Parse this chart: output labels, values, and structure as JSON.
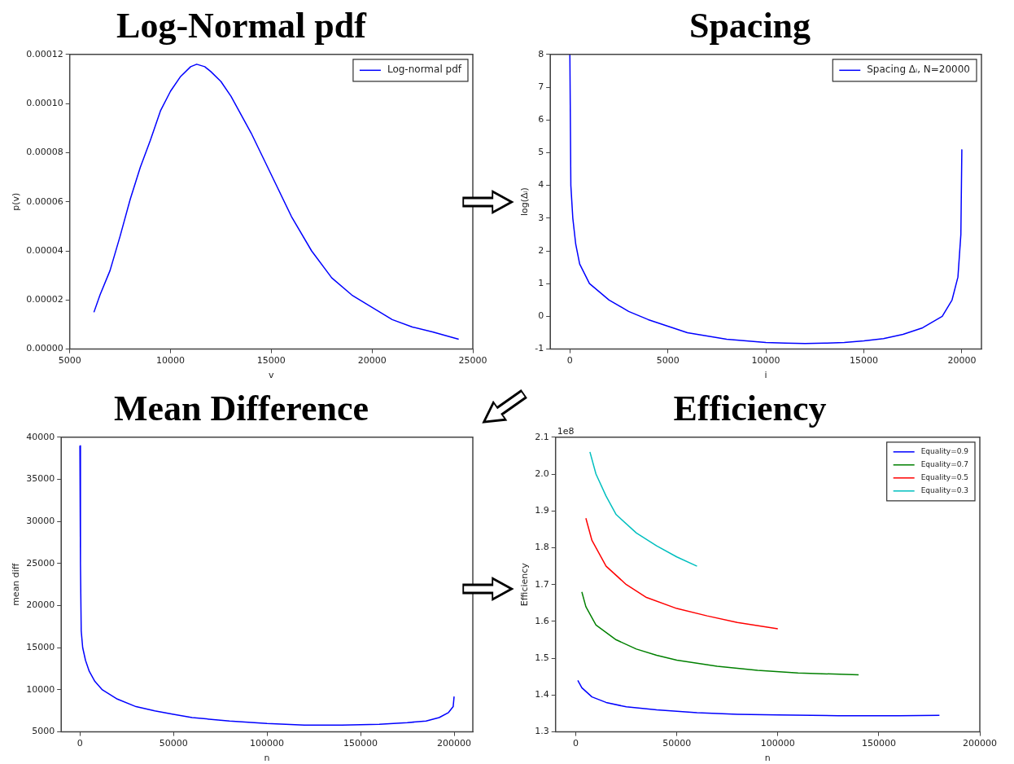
{
  "chart_data": [
    {
      "type": "line",
      "title": "Log-Normal pdf",
      "xlabel": "v",
      "ylabel": "p(v)",
      "xlim": [
        5000,
        25000
      ],
      "xticks": [
        5000,
        10000,
        15000,
        20000,
        25000
      ],
      "ylim": [
        0,
        0.00012
      ],
      "yticks": [
        {
          "value": 0,
          "label": "0.00000"
        },
        {
          "value": 2e-05,
          "label": "0.00002"
        },
        {
          "value": 4e-05,
          "label": "0.00004"
        },
        {
          "value": 6e-05,
          "label": "0.00006"
        },
        {
          "value": 8e-05,
          "label": "0.00008"
        },
        {
          "value": 0.0001,
          "label": "0.00010"
        },
        {
          "value": 0.00012,
          "label": "0.00012"
        }
      ],
      "grid": false,
      "legend": "top right",
      "series": [
        {
          "name": "Log-normal pdf",
          "color": "#0000ff",
          "x": [
            6200,
            6500,
            7000,
            7500,
            8000,
            8500,
            9000,
            9500,
            10000,
            10500,
            11000,
            11300,
            11700,
            12000,
            12500,
            13000,
            14000,
            15000,
            16000,
            17000,
            18000,
            19000,
            20000,
            21000,
            22000,
            23000,
            24300
          ],
          "values": [
            1.5e-05,
            2.2e-05,
            3.2e-05,
            4.6e-05,
            6.1e-05,
            7.4e-05,
            8.5e-05,
            9.7e-05,
            0.000105,
            0.000111,
            0.000115,
            0.000116,
            0.000115,
            0.000113,
            0.000109,
            0.000103,
            8.8e-05,
            7.1e-05,
            5.4e-05,
            4e-05,
            2.9e-05,
            2.2e-05,
            1.7e-05,
            1.2e-05,
            9e-06,
            7e-06,
            4e-06
          ]
        }
      ]
    },
    {
      "type": "line",
      "title": "Spacing",
      "xlabel": "i",
      "ylabel": "log(Δᵢ)",
      "xlim": [
        -1000,
        21000
      ],
      "xticks": [
        0,
        5000,
        10000,
        15000,
        20000
      ],
      "ylim": [
        -1,
        8
      ],
      "yticks": [
        -1,
        0,
        1,
        2,
        3,
        4,
        5,
        6,
        7,
        8
      ],
      "grid": false,
      "legend": "top right",
      "series": [
        {
          "name": "Spacing Δᵢ, N=20000",
          "color": "#0000ff",
          "x": [
            0,
            50,
            150,
            300,
            500,
            1000,
            2000,
            3000,
            4000,
            5000,
            6000,
            7000,
            8000,
            9000,
            10000,
            11000,
            12000,
            13000,
            14000,
            15000,
            16000,
            17000,
            18000,
            19000,
            19500,
            19800,
            19950,
            20000
          ],
          "values": [
            8,
            4,
            3,
            2.2,
            1.6,
            1,
            0.5,
            0.15,
            -0.1,
            -0.3,
            -0.5,
            -0.6,
            -0.7,
            -0.75,
            -0.8,
            -0.82,
            -0.83,
            -0.82,
            -0.8,
            -0.75,
            -0.68,
            -0.55,
            -0.35,
            0,
            0.5,
            1.2,
            2.5,
            5.1
          ]
        }
      ]
    },
    {
      "type": "line",
      "title": "Mean Difference",
      "xlabel": "n",
      "ylabel": "mean diff",
      "xlim": [
        -10000,
        210000
      ],
      "xticks": [
        0,
        50000,
        100000,
        150000,
        200000
      ],
      "ylim": [
        5000,
        40000
      ],
      "yticks": [
        5000,
        10000,
        15000,
        20000,
        25000,
        30000,
        35000,
        40000
      ],
      "grid": false,
      "series": [
        {
          "color": "#0000ff",
          "x": [
            0,
            300,
            700,
            1500,
            3000,
            5000,
            8000,
            12000,
            20000,
            30000,
            40000,
            50000,
            60000,
            80000,
            100000,
            120000,
            140000,
            160000,
            175000,
            185000,
            192000,
            197000,
            199500,
            200000
          ],
          "values": [
            39000,
            25000,
            17000,
            15000,
            13500,
            12200,
            11000,
            10000,
            8900,
            8000,
            7500,
            7100,
            6700,
            6300,
            6000,
            5800,
            5800,
            5900,
            6100,
            6300,
            6700,
            7300,
            8000,
            9200
          ]
        }
      ]
    },
    {
      "type": "line",
      "title": "Efficiency",
      "xlabel": "n",
      "ylabel": "Efficiency",
      "annotations": [
        "1e8"
      ],
      "xlim": [
        -10000,
        200000
      ],
      "xticks": [
        0,
        50000,
        100000,
        150000,
        200000
      ],
      "ylim": [
        1.3,
        2.1
      ],
      "yticks": [
        1.3,
        1.4,
        1.5,
        1.6,
        1.7,
        1.8,
        1.9,
        {
          "value": 2,
          "label": "2.0"
        },
        2.1
      ],
      "grid": false,
      "legend": "top right",
      "series": [
        {
          "name": "Equality=0.9",
          "color": "#0000ff",
          "x": [
            1000,
            3000,
            8000,
            15000,
            25000,
            40000,
            60000,
            80000,
            100000,
            130000,
            160000,
            180000
          ],
          "values": [
            1.44,
            1.42,
            1.395,
            1.38,
            1.368,
            1.36,
            1.352,
            1.348,
            1.346,
            1.344,
            1.344,
            1.345
          ]
        },
        {
          "name": "Equality=0.7",
          "color": "#008000",
          "x": [
            3000,
            5000,
            10000,
            20000,
            30000,
            40000,
            50000,
            70000,
            90000,
            110000,
            140000
          ],
          "values": [
            1.68,
            1.64,
            1.59,
            1.55,
            1.525,
            1.508,
            1.495,
            1.478,
            1.467,
            1.46,
            1.455
          ]
        },
        {
          "name": "Equality=0.5",
          "color": "#ff0000",
          "x": [
            5000,
            8000,
            15000,
            25000,
            35000,
            50000,
            65000,
            80000,
            100000
          ],
          "values": [
            1.88,
            1.82,
            1.75,
            1.7,
            1.665,
            1.635,
            1.615,
            1.597,
            1.58
          ]
        },
        {
          "name": "Equality=0.3",
          "color": "#00bfbf",
          "x": [
            7000,
            10000,
            15000,
            20000,
            30000,
            40000,
            50000,
            60000
          ],
          "values": [
            2.06,
            2,
            1.94,
            1.89,
            1.84,
            1.805,
            1.775,
            1.75
          ]
        }
      ]
    }
  ]
}
